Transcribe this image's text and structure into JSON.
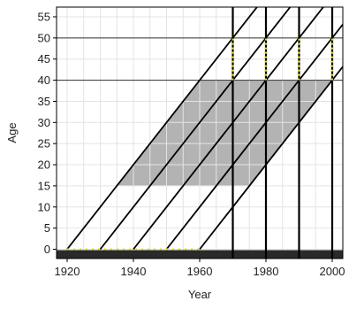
{
  "chart_data": {
    "type": "lexis",
    "xlabel": "Year",
    "ylabel": "Age",
    "xlim": [
      1916.8,
      2003.2
    ],
    "ylim": [
      -2.2,
      57.3
    ],
    "xticks": [
      1920,
      1940,
      1960,
      1980,
      2000
    ],
    "yticks": [
      0,
      5,
      10,
      15,
      20,
      25,
      30,
      35,
      40,
      45,
      50,
      55
    ],
    "x_gridlines": [
      1920,
      1925,
      1930,
      1935,
      1940,
      1945,
      1950,
      1955,
      1960,
      1965,
      1970,
      1975,
      1980,
      1985,
      1990,
      1995,
      2000
    ],
    "grid": true,
    "cohort_lines": [
      1920,
      1930,
      1940,
      1950,
      1960
    ],
    "period_lines": [
      1970,
      1980,
      1990,
      2000
    ],
    "age_lines": [
      40,
      50
    ],
    "shaded": {
      "cohorts": [
        1920,
        1960
      ],
      "ages": [
        15,
        40
      ],
      "color": "#b3b3b3"
    },
    "birth_dots": [
      1920,
      1960
    ],
    "dotted_ages": [
      40,
      50
    ],
    "dot_color": "#e8e800"
  }
}
